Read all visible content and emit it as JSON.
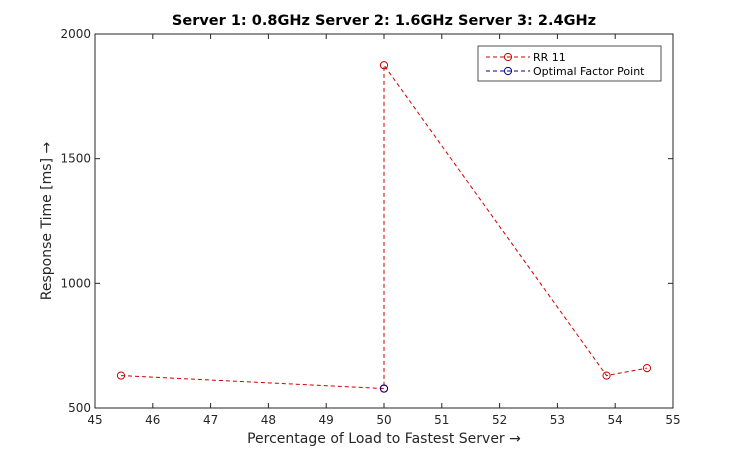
{
  "chart_data": {
    "type": "line",
    "title": "Server 1: 0.8GHz Server 2: 1.6GHz Server 3: 2.4GHz",
    "xlabel": "Percentage of Load to Fastest Server →",
    "ylabel": "Response Time [ms] →",
    "xlim": [
      45,
      55
    ],
    "ylim": [
      500,
      2000
    ],
    "xticks": [
      45,
      46,
      47,
      48,
      49,
      50,
      51,
      52,
      53,
      54,
      55
    ],
    "yticks": [
      500,
      1000,
      1500,
      2000
    ],
    "grid": false,
    "legend_position": "top-right",
    "series": [
      {
        "name": "RR 11",
        "color": "#cc0000",
        "line_style": "dashed",
        "marker": "circle",
        "x": [
          45.45,
          50.0,
          50.0,
          53.85,
          54.55
        ],
        "y": [
          630,
          578,
          1875,
          630,
          660
        ]
      },
      {
        "name": "Optimal Factor Point",
        "color": "#00008b",
        "line_style": "dashed",
        "marker": "circle",
        "x": [
          50.0
        ],
        "y": [
          578
        ]
      }
    ]
  }
}
